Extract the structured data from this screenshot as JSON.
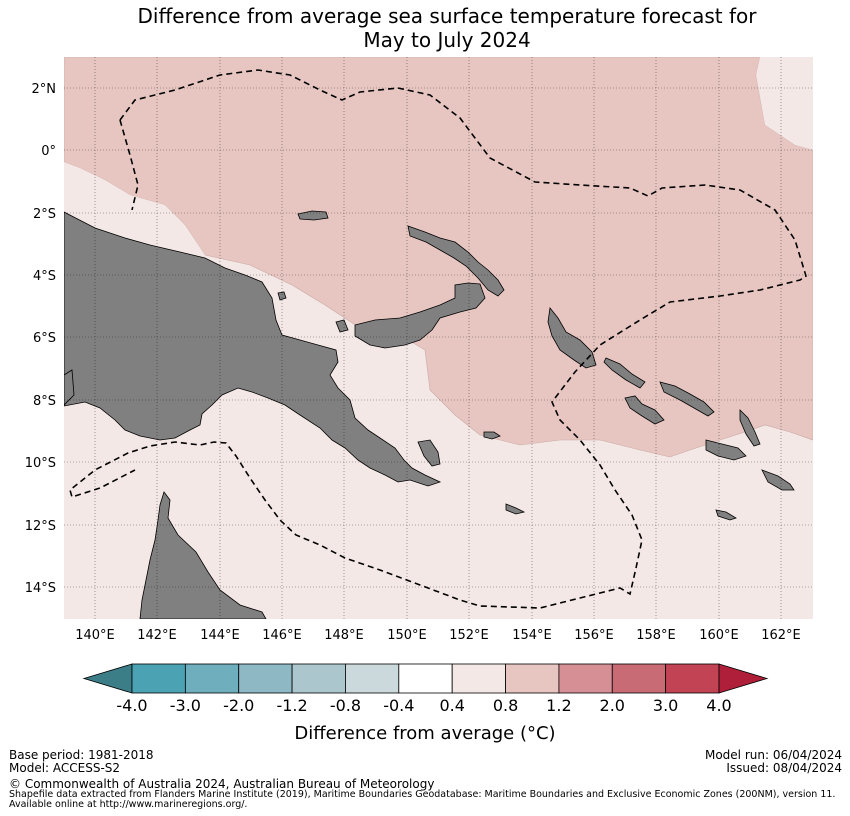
{
  "title_line1": "Difference from average sea surface temperature forecast for",
  "title_line2": "May to July 2024",
  "map": {
    "lat_labels": [
      "2°N",
      "0°",
      "2°S",
      "4°S",
      "6°S",
      "8°S",
      "10°S",
      "12°S",
      "14°S"
    ],
    "lon_labels": [
      "140°E",
      "142°E",
      "144°E",
      "146°E",
      "148°E",
      "150°E",
      "152°E",
      "154°E",
      "156°E",
      "158°E",
      "160°E",
      "162°E"
    ],
    "colors": {
      "anom_0_4_to_0_8": "#f4e8e6",
      "anom_0_8_to_1_2": "#e7c6c1",
      "land": "#808080",
      "eez_line": "#000000"
    }
  },
  "colorbar": {
    "title": "Difference from average (°C)",
    "tick_labels": [
      "-4.0",
      "-3.0",
      "-2.0",
      "-1.2",
      "-0.8",
      "-0.4",
      "0.4",
      "0.8",
      "1.2",
      "2.0",
      "3.0",
      "4.0"
    ],
    "colors": [
      "#3c7e88",
      "#4aa2b3",
      "#6faebd",
      "#8db8c4",
      "#abc7cd",
      "#cbd8dc",
      "#ffffff",
      "#f4e8e6",
      "#e7c6c1",
      "#d68f94",
      "#c96b74",
      "#c24454",
      "#b01f3a"
    ]
  },
  "footer": {
    "base_period": "Base period: 1981-2018",
    "model": "Model: ACCESS-S2",
    "model_run": "Model run: 06/04/2024",
    "issued": "Issued: 08/04/2024",
    "copyright": "© Commonwealth of Australia 2024, Australian Bureau of Meteorology",
    "source_line1": "Shapefile data extracted from Flanders Marine Institute (2019), Maritime Boundaries Geodatabase: Maritime Boundaries and Exclusive Economic Zones (200NM), version 11.",
    "source_line2": "Available online at http://www.marineregions.org/."
  }
}
